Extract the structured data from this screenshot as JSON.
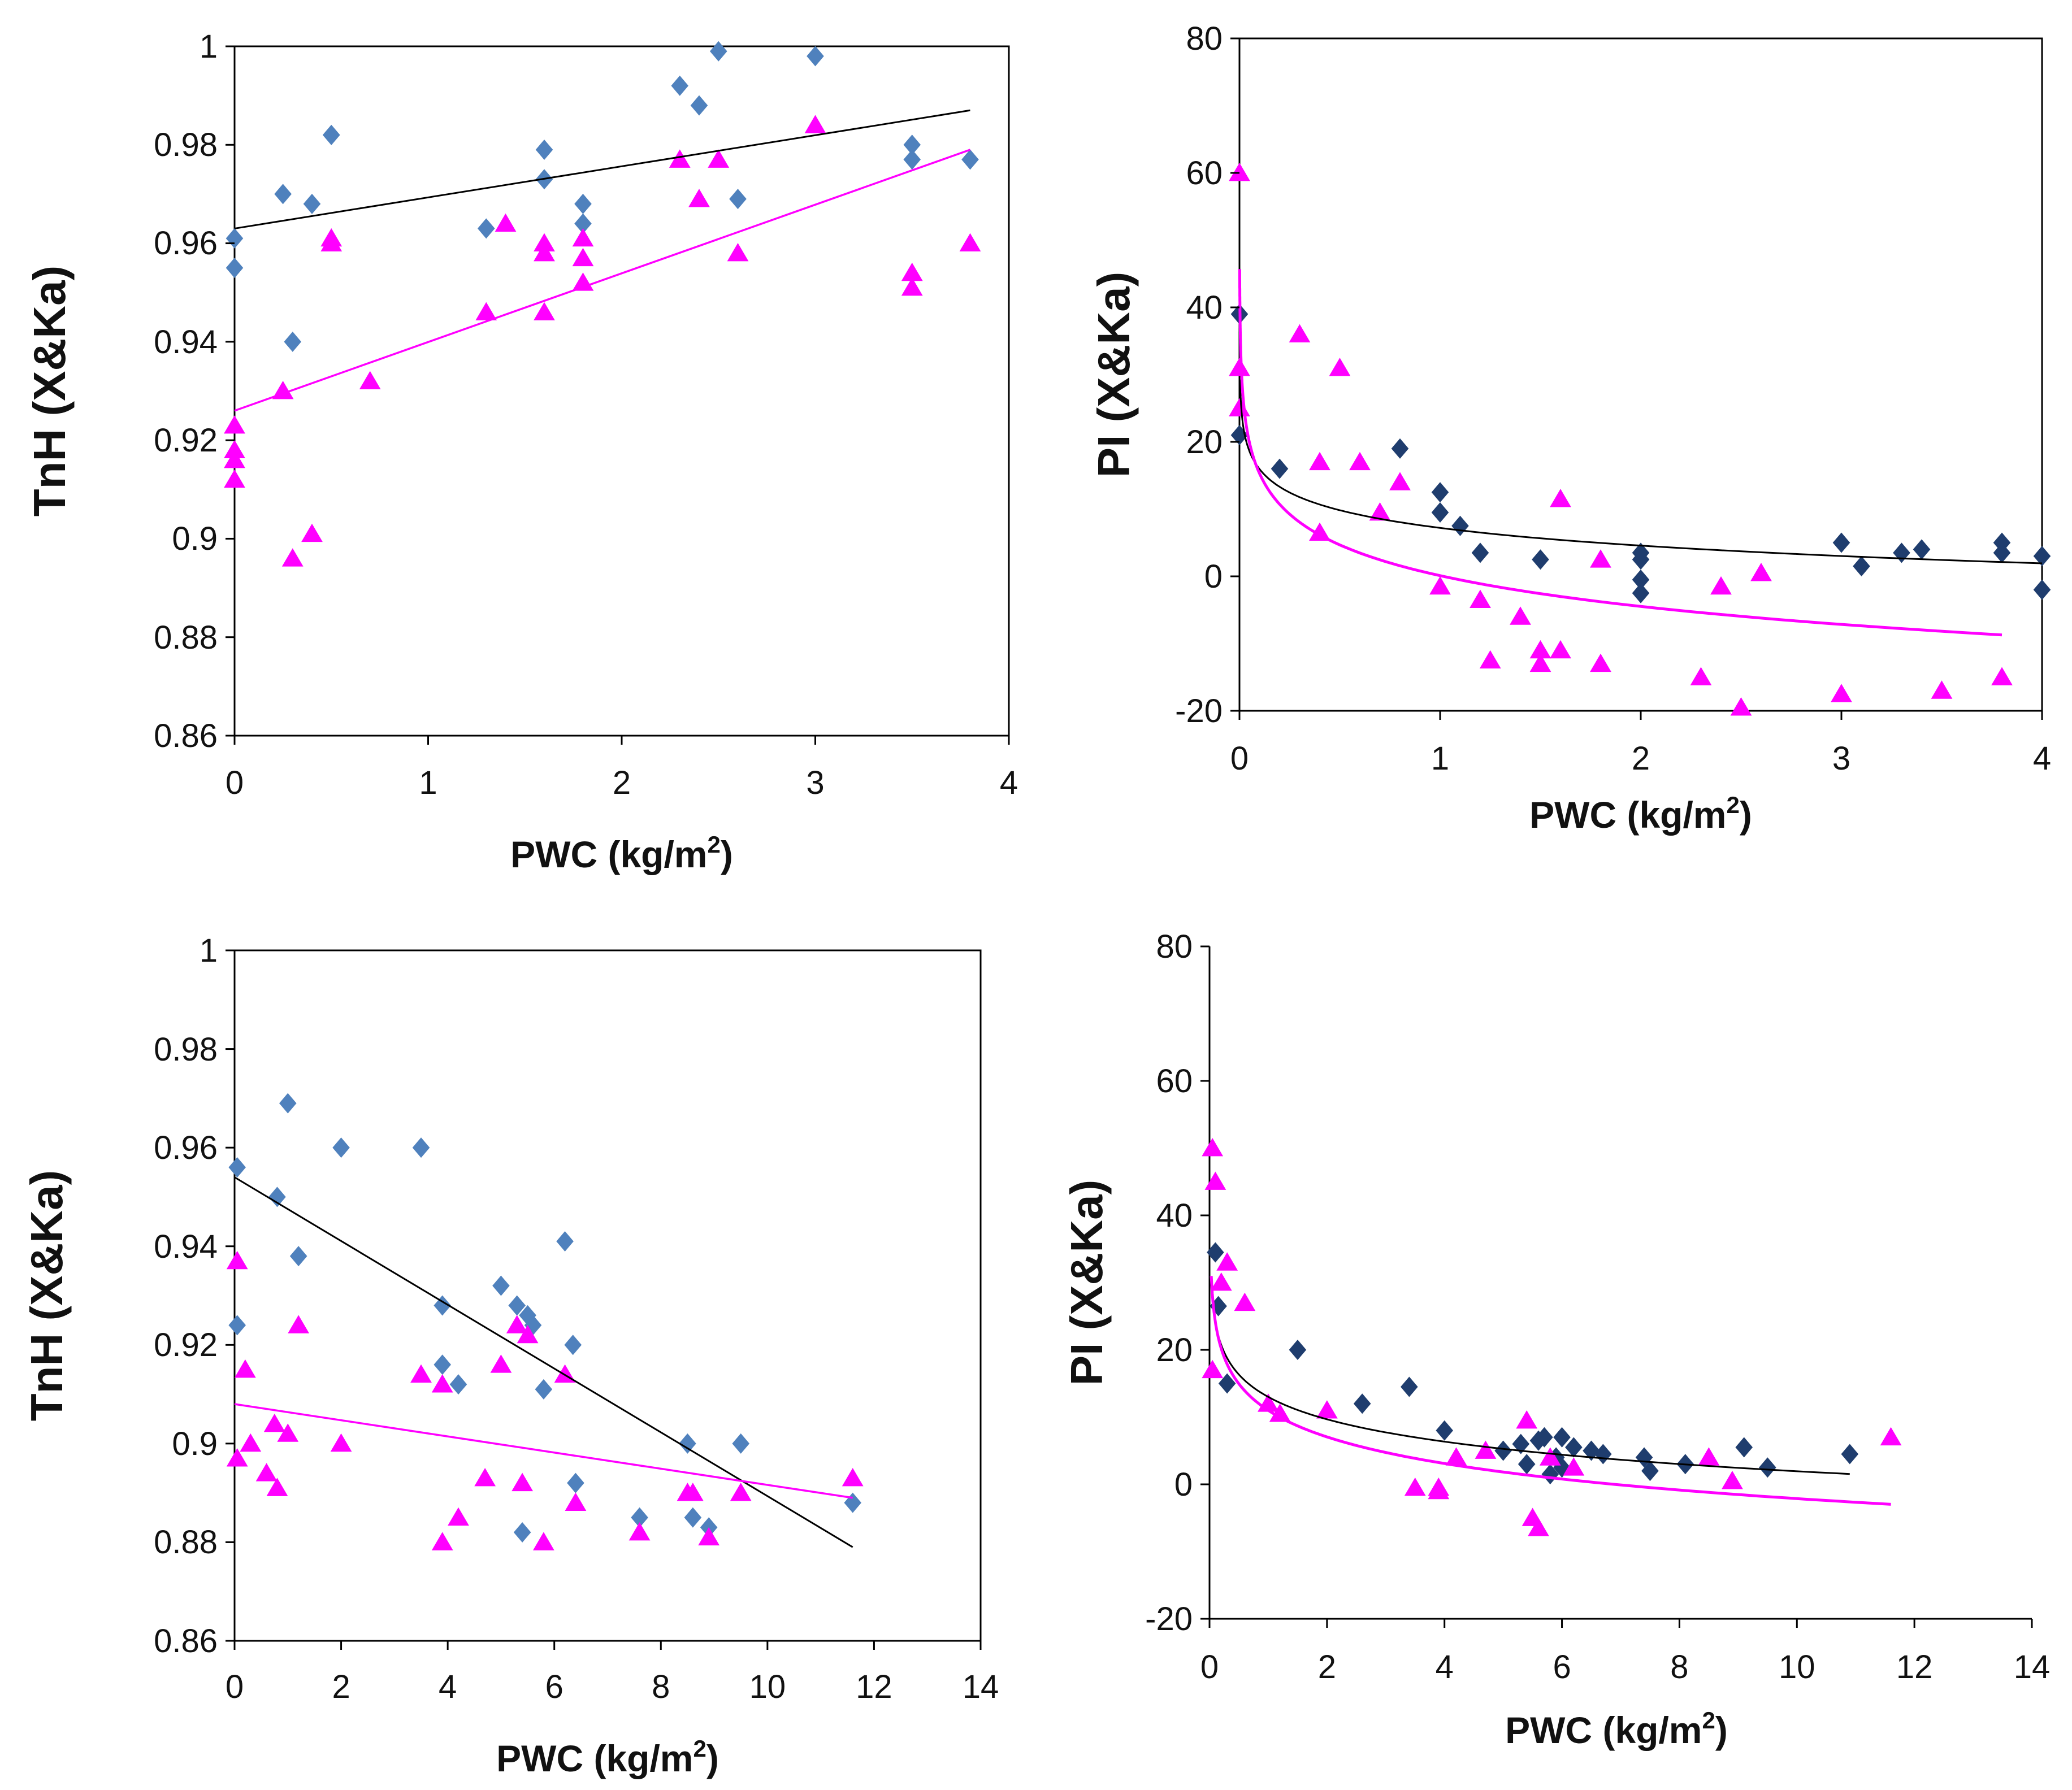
{
  "chart_data": [
    {
      "type": "scatter",
      "panel": "top-left",
      "xlabel": "PWC (kg/m",
      "xlabel_sup": "2",
      "xlabel_close": ")",
      "ylabel": "TnH (X&Ka)",
      "xlim": [
        0,
        4
      ],
      "ylim": [
        0.86,
        1.0
      ],
      "xticks": [
        "0",
        "1",
        "2",
        "3",
        "4"
      ],
      "yticks": [
        "0.86",
        "0.88",
        "0.9",
        "0.92",
        "0.94",
        "0.96",
        "0.98",
        "1"
      ],
      "xtick_values": [
        0,
        1,
        2,
        3,
        4
      ],
      "ytick_values": [
        0.86,
        0.88,
        0.9,
        0.92,
        0.94,
        0.96,
        0.98,
        1.0
      ],
      "frame": "full",
      "series": [
        {
          "name": "diamond",
          "marker": "diamond",
          "color": "#4f81bd",
          "points": [
            [
              0,
              0.961
            ],
            [
              0,
              0.955
            ],
            [
              0.25,
              0.97
            ],
            [
              0.3,
              0.94
            ],
            [
              0.4,
              0.968
            ],
            [
              0.5,
              0.982
            ],
            [
              0.5,
              0.982
            ],
            [
              1.3,
              0.963
            ],
            [
              1.6,
              0.979
            ],
            [
              1.6,
              0.973
            ],
            [
              1.8,
              0.968
            ],
            [
              1.8,
              0.964
            ],
            [
              2.3,
              0.992
            ],
            [
              2.4,
              0.988
            ],
            [
              2.5,
              0.999
            ],
            [
              2.6,
              0.969
            ],
            [
              3.0,
              0.998
            ],
            [
              3.5,
              0.98
            ],
            [
              3.5,
              0.977
            ],
            [
              3.8,
              0.977
            ]
          ]
        },
        {
          "name": "triangle",
          "marker": "triangle",
          "color": "#ff00ff",
          "points": [
            [
              0,
              0.923
            ],
            [
              0,
              0.918
            ],
            [
              0,
              0.916
            ],
            [
              0,
              0.912
            ],
            [
              0.25,
              0.93
            ],
            [
              0.3,
              0.896
            ],
            [
              0.4,
              0.901
            ],
            [
              0.5,
              0.961
            ],
            [
              0.5,
              0.96
            ],
            [
              0.7,
              0.932
            ],
            [
              1.3,
              0.946
            ],
            [
              1.4,
              0.964
            ],
            [
              1.6,
              0.96
            ],
            [
              1.6,
              0.958
            ],
            [
              1.6,
              0.946
            ],
            [
              1.8,
              0.961
            ],
            [
              1.8,
              0.957
            ],
            [
              1.8,
              0.952
            ],
            [
              2.3,
              0.977
            ],
            [
              2.4,
              0.969
            ],
            [
              2.5,
              0.977
            ],
            [
              2.6,
              0.958
            ],
            [
              3.0,
              0.984
            ],
            [
              3.5,
              0.954
            ],
            [
              3.5,
              0.951
            ],
            [
              3.8,
              0.96
            ]
          ]
        }
      ],
      "trendlines": [
        {
          "kind": "linear",
          "color": "#000000",
          "x0": 0,
          "y0": 0.963,
          "x1": 3.8,
          "y1": 0.987
        },
        {
          "kind": "linear",
          "color": "#ff00ff",
          "x0": 0,
          "y0": 0.926,
          "x1": 3.8,
          "y1": 0.979
        }
      ]
    },
    {
      "type": "scatter",
      "panel": "top-right",
      "xlabel": "PWC (kg/m",
      "xlabel_sup": "2",
      "xlabel_close": ")",
      "ylabel": "PI (X&Ka)",
      "xlim": [
        0,
        4
      ],
      "ylim": [
        -20,
        80
      ],
      "xticks": [
        "0",
        "1",
        "2",
        "3",
        "4"
      ],
      "yticks": [
        "-20",
        "0",
        "20",
        "40",
        "60",
        "80"
      ],
      "xtick_values": [
        0,
        1,
        2,
        3,
        4
      ],
      "ytick_values": [
        -20,
        0,
        20,
        40,
        60,
        80
      ],
      "frame": "full",
      "series": [
        {
          "name": "diamond",
          "marker": "diamond",
          "color": "#1f3d6e",
          "points": [
            [
              0,
              39
            ],
            [
              0,
              21
            ],
            [
              0.2,
              16
            ],
            [
              0.8,
              19
            ],
            [
              1.0,
              12.5
            ],
            [
              1.0,
              9.5
            ],
            [
              1.1,
              7.5
            ],
            [
              1.2,
              3.5
            ],
            [
              1.5,
              2.5
            ],
            [
              2.0,
              3.5
            ],
            [
              2.0,
              2.5
            ],
            [
              2.0,
              -0.5
            ],
            [
              2.0,
              -2.5
            ],
            [
              3.0,
              5
            ],
            [
              3.1,
              1.5
            ],
            [
              3.3,
              3.5
            ],
            [
              3.4,
              4
            ],
            [
              3.8,
              5
            ],
            [
              3.8,
              3.5
            ],
            [
              4.0,
              3
            ],
            [
              4.0,
              -2
            ]
          ]
        },
        {
          "name": "triangle",
          "marker": "triangle",
          "color": "#ff00ff",
          "points": [
            [
              0,
              60
            ],
            [
              0,
              31
            ],
            [
              0,
              25
            ],
            [
              0.3,
              36
            ],
            [
              0.4,
              17
            ],
            [
              0.4,
              6.5
            ],
            [
              0.5,
              31
            ],
            [
              0.6,
              17
            ],
            [
              0.7,
              9.5
            ],
            [
              0.8,
              14
            ],
            [
              1.0,
              -1.5
            ],
            [
              1.2,
              -3.5
            ],
            [
              1.25,
              -12.5
            ],
            [
              1.4,
              -6
            ],
            [
              1.5,
              -11
            ],
            [
              1.5,
              -13
            ],
            [
              1.6,
              11.5
            ],
            [
              1.6,
              -11
            ],
            [
              1.8,
              2.5
            ],
            [
              1.8,
              -13
            ],
            [
              2.3,
              -15
            ],
            [
              2.4,
              -1.5
            ],
            [
              2.5,
              -19.5
            ],
            [
              2.6,
              0.5
            ],
            [
              3.0,
              -17.5
            ],
            [
              3.5,
              -17
            ],
            [
              3.8,
              -15
            ]
          ]
        }
      ],
      "trendlines": [
        {
          "kind": "log",
          "color": "#000000",
          "a": 7.2,
          "b": -3.8,
          "x0": 0.003,
          "x1": 4.0
        },
        {
          "kind": "log",
          "color": "#ff00ff",
          "a": 0.1,
          "b": -6.6,
          "x0": 0.001,
          "x1": 3.8
        }
      ]
    },
    {
      "type": "scatter",
      "panel": "bottom-left",
      "xlabel": "PWC (kg/m",
      "xlabel_sup": "2",
      "xlabel_close": ")",
      "ylabel": "TnH (X&Ka)",
      "xlim": [
        0,
        14
      ],
      "ylim": [
        0.86,
        1.0
      ],
      "xticks": [
        "0",
        "2",
        "4",
        "6",
        "8",
        "10",
        "12",
        "14"
      ],
      "yticks": [
        "0.86",
        "0.88",
        "0.9",
        "0.92",
        "0.94",
        "0.96",
        "0.98",
        "1"
      ],
      "xtick_values": [
        0,
        2,
        4,
        6,
        8,
        10,
        12,
        14
      ],
      "ytick_values": [
        0.86,
        0.88,
        0.9,
        0.92,
        0.94,
        0.96,
        0.98,
        1.0
      ],
      "frame": "full",
      "series": [
        {
          "name": "diamond",
          "marker": "diamond",
          "color": "#4f81bd",
          "points": [
            [
              0.05,
              0.956
            ],
            [
              0.05,
              0.924
            ],
            [
              0.8,
              0.95
            ],
            [
              1.0,
              0.969
            ],
            [
              1.2,
              0.938
            ],
            [
              2.0,
              0.96
            ],
            [
              3.5,
              0.96
            ],
            [
              3.9,
              0.928
            ],
            [
              3.9,
              0.916
            ],
            [
              4.2,
              0.912
            ],
            [
              5.0,
              0.932
            ],
            [
              5.3,
              0.928
            ],
            [
              5.4,
              0.882
            ],
            [
              5.5,
              0.926
            ],
            [
              5.6,
              0.924
            ],
            [
              5.8,
              0.911
            ],
            [
              6.2,
              0.941
            ],
            [
              6.35,
              0.92
            ],
            [
              6.4,
              0.892
            ],
            [
              7.6,
              0.885
            ],
            [
              8.5,
              0.9
            ],
            [
              8.6,
              0.885
            ],
            [
              8.9,
              0.883
            ],
            [
              9.5,
              0.9
            ],
            [
              11.6,
              0.888
            ]
          ]
        },
        {
          "name": "triangle",
          "marker": "triangle",
          "color": "#ff00ff",
          "points": [
            [
              0.05,
              0.937
            ],
            [
              0.05,
              0.897
            ],
            [
              0.2,
              0.915
            ],
            [
              0.3,
              0.9
            ],
            [
              0.6,
              0.894
            ],
            [
              0.75,
              0.904
            ],
            [
              0.8,
              0.891
            ],
            [
              1.0,
              0.902
            ],
            [
              1.2,
              0.924
            ],
            [
              2.0,
              0.9
            ],
            [
              3.5,
              0.914
            ],
            [
              3.9,
              0.912
            ],
            [
              3.9,
              0.88
            ],
            [
              4.2,
              0.885
            ],
            [
              4.7,
              0.893
            ],
            [
              5.0,
              0.916
            ],
            [
              5.3,
              0.924
            ],
            [
              5.4,
              0.892
            ],
            [
              5.5,
              0.922
            ],
            [
              5.8,
              0.88
            ],
            [
              6.2,
              0.914
            ],
            [
              6.4,
              0.888
            ],
            [
              7.6,
              0.882
            ],
            [
              8.5,
              0.89
            ],
            [
              8.6,
              0.89
            ],
            [
              8.9,
              0.881
            ],
            [
              9.5,
              0.89
            ],
            [
              11.6,
              0.893
            ]
          ]
        }
      ],
      "trendlines": [
        {
          "kind": "linear",
          "color": "#000000",
          "x0": 0,
          "y0": 0.954,
          "x1": 11.6,
          "y1": 0.879
        },
        {
          "kind": "linear",
          "color": "#ff00ff",
          "x0": 0,
          "y0": 0.908,
          "x1": 11.6,
          "y1": 0.889
        }
      ]
    },
    {
      "type": "scatter",
      "panel": "bottom-right",
      "xlabel": "PWC (kg/m",
      "xlabel_sup": "2",
      "xlabel_close": ")",
      "ylabel": "PI (X&Ka)",
      "xlim": [
        0,
        14
      ],
      "ylim": [
        -20,
        80
      ],
      "xticks": [
        "0",
        "2",
        "4",
        "6",
        "8",
        "10",
        "12",
        "14"
      ],
      "yticks": [
        "-20",
        "0",
        "20",
        "40",
        "60",
        "80"
      ],
      "xtick_values": [
        0,
        2,
        4,
        6,
        8,
        10,
        12,
        14
      ],
      "ytick_values": [
        -20,
        0,
        20,
        40,
        60,
        80
      ],
      "frame": "axes",
      "series": [
        {
          "name": "diamond",
          "marker": "diamond",
          "color": "#1f3d6e",
          "points": [
            [
              0.1,
              34.5
            ],
            [
              0.15,
              26.5
            ],
            [
              0.3,
              15
            ],
            [
              1.5,
              20
            ],
            [
              2.6,
              12
            ],
            [
              3.4,
              14.5
            ],
            [
              4.0,
              8
            ],
            [
              5.0,
              5
            ],
            [
              5.3,
              6
            ],
            [
              5.4,
              3
            ],
            [
              5.6,
              6.5
            ],
            [
              5.7,
              7
            ],
            [
              5.8,
              1.5
            ],
            [
              5.9,
              4
            ],
            [
              6.0,
              7
            ],
            [
              6.0,
              2.5
            ],
            [
              6.2,
              5.5
            ],
            [
              6.5,
              5
            ],
            [
              6.7,
              4.5
            ],
            [
              7.4,
              4
            ],
            [
              7.5,
              2
            ],
            [
              8.1,
              3
            ],
            [
              9.1,
              5.5
            ],
            [
              9.5,
              2.5
            ],
            [
              10.9,
              4.5
            ]
          ]
        },
        {
          "name": "triangle",
          "marker": "triangle",
          "color": "#ff00ff",
          "points": [
            [
              0.05,
              50
            ],
            [
              0.05,
              17
            ],
            [
              0.1,
              45
            ],
            [
              0.2,
              30
            ],
            [
              0.3,
              33
            ],
            [
              0.6,
              27
            ],
            [
              1.0,
              12
            ],
            [
              1.2,
              10.5
            ],
            [
              2.0,
              11
            ],
            [
              3.5,
              -0.5
            ],
            [
              3.9,
              -1
            ],
            [
              3.9,
              -0.5
            ],
            [
              4.2,
              4
            ],
            [
              4.7,
              5
            ],
            [
              5.4,
              9.5
            ],
            [
              5.5,
              -5
            ],
            [
              5.6,
              -6.5
            ],
            [
              5.8,
              4
            ],
            [
              6.2,
              2.5
            ],
            [
              8.5,
              4
            ],
            [
              8.9,
              0.5
            ],
            [
              11.6,
              7
            ]
          ]
        }
      ],
      "trendlines": [
        {
          "kind": "log",
          "color": "#000000",
          "a": 13.0,
          "b": -4.8,
          "x0": 0.05,
          "x1": 10.9
        },
        {
          "kind": "log",
          "color": "#ff00ff",
          "a": 11.0,
          "b": -5.7,
          "x0": 0.03,
          "x1": 11.6
        }
      ]
    }
  ]
}
